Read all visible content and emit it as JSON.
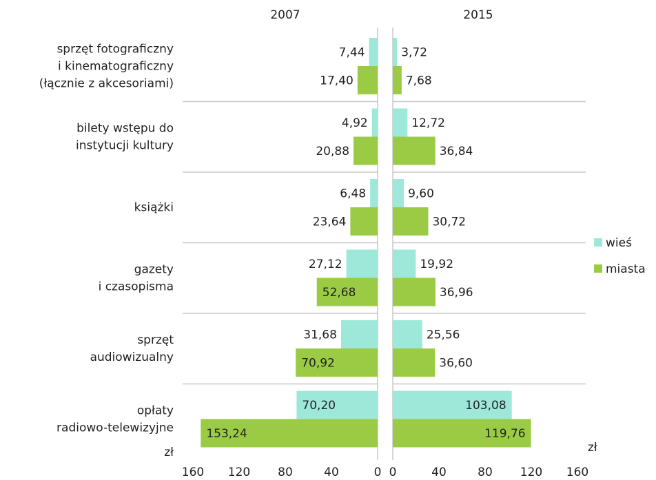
{
  "chart_data": [
    {
      "type": "bar",
      "title": "2007",
      "x_unit": "zł",
      "categories": [
        [
          "sprzęt fotograficzny",
          "i kinematograficzny",
          "(łącznie z akcesoriami)"
        ],
        [
          "bilety wstępu do",
          "instytucji kultury"
        ],
        [
          "książki"
        ],
        [
          "gazety",
          "i czasopisma"
        ],
        [
          "sprzęt",
          "audiowizualny"
        ],
        [
          "opłaty",
          "radiowo-telewizyjne"
        ]
      ],
      "series": [
        {
          "name": "wieś",
          "color": "#9ee8d9",
          "values": [
            7.44,
            4.92,
            6.48,
            27.12,
            31.68,
            70.2
          ],
          "value_labels": [
            "7,44",
            "4,92",
            "6,48",
            "27,12",
            "31,68",
            "70,20"
          ]
        },
        {
          "name": "miasta",
          "color": "#9bcb45",
          "values": [
            17.4,
            20.88,
            23.64,
            52.68,
            70.92,
            153.24
          ],
          "value_labels": [
            "17,40",
            "20,88",
            "23,64",
            "52,68",
            "70,92",
            "153,24"
          ]
        }
      ],
      "xlim": [
        160,
        0
      ],
      "xticks": [
        160,
        120,
        80,
        40,
        0
      ]
    },
    {
      "type": "bar",
      "title": "2015",
      "x_unit": "zł",
      "series": [
        {
          "name": "wieś",
          "color": "#9ee8d9",
          "values": [
            3.72,
            12.72,
            9.6,
            19.92,
            25.56,
            103.08
          ],
          "value_labels": [
            "3,72",
            "12,72",
            "9,60",
            "19,92",
            "25,56",
            "103,08"
          ]
        },
        {
          "name": "miasta",
          "color": "#9bcb45",
          "values": [
            7.68,
            36.84,
            30.72,
            36.96,
            36.6,
            119.76
          ],
          "value_labels": [
            "7,68",
            "36,84",
            "30,72",
            "36,96",
            "36,60",
            "119,76"
          ]
        }
      ],
      "xlim": [
        0,
        160
      ],
      "xticks": [
        0,
        40,
        80,
        120,
        160
      ]
    }
  ]
}
